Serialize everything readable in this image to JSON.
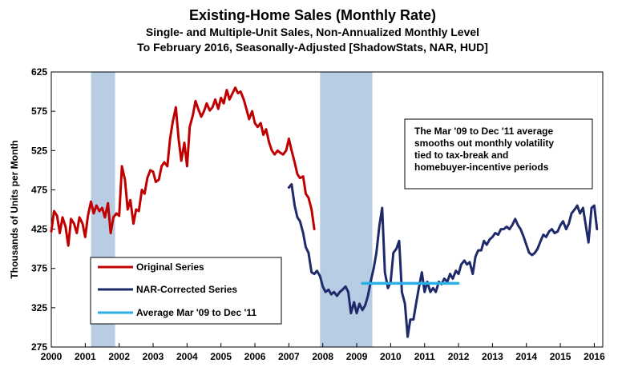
{
  "chart_data": {
    "type": "line",
    "title": "Existing-Home Sales (Monthly Rate)",
    "subtitle_1": "Single- and Multiple-Unit Sales, Non-Annualized Monthly Level",
    "subtitle_2": "To February 2016, Seasonally-Adjusted [ShadowStats, NAR, HUD]",
    "ylabel": "Thousands of Units per Month",
    "xlabel": "",
    "ylim": [
      275,
      625
    ],
    "xlim": [
      2000,
      2016.25
    ],
    "y_ticks": [
      "275",
      "325",
      "375",
      "425",
      "475",
      "525",
      "575",
      "625"
    ],
    "x_ticks": [
      "2000",
      "2001",
      "2002",
      "2003",
      "2004",
      "2005",
      "2006",
      "2007",
      "2008",
      "2009",
      "2010",
      "2011",
      "2012",
      "2013",
      "2014",
      "2015",
      "2016"
    ],
    "grid": false,
    "recessions": [
      {
        "start": 2001.17,
        "end": 2001.88
      },
      {
        "start": 2007.92,
        "end": 2009.46
      }
    ],
    "legend": {
      "position": "lower-left",
      "entries": [
        "Original Series",
        "NAR-Corrected Series",
        "Average Mar '09 to Dec '11"
      ]
    },
    "annotation": {
      "lines": [
        "The Mar '09 to Dec '11 average",
        "smooths out monthly volatility",
        "tied to tax-break and",
        "homebuyer-incentive  periods"
      ]
    },
    "series": [
      {
        "name": "Original Series",
        "color": "#c00000",
        "x": [
          2000.0,
          2000.08,
          2000.17,
          2000.25,
          2000.33,
          2000.42,
          2000.5,
          2000.58,
          2000.67,
          2000.75,
          2000.83,
          2000.92,
          2001.0,
          2001.08,
          2001.17,
          2001.25,
          2001.33,
          2001.42,
          2001.5,
          2001.58,
          2001.67,
          2001.75,
          2001.83,
          2001.92,
          2002.0,
          2002.08,
          2002.17,
          2002.25,
          2002.33,
          2002.42,
          2002.5,
          2002.58,
          2002.67,
          2002.75,
          2002.83,
          2002.92,
          2003.0,
          2003.08,
          2003.17,
          2003.25,
          2003.33,
          2003.42,
          2003.5,
          2003.58,
          2003.67,
          2003.75,
          2003.83,
          2003.92,
          2004.0,
          2004.08,
          2004.17,
          2004.25,
          2004.33,
          2004.42,
          2004.5,
          2004.58,
          2004.67,
          2004.75,
          2004.83,
          2004.92,
          2005.0,
          2005.08,
          2005.17,
          2005.25,
          2005.33,
          2005.42,
          2005.5,
          2005.58,
          2005.67,
          2005.75,
          2005.83,
          2005.92,
          2006.0,
          2006.08,
          2006.17,
          2006.25,
          2006.33,
          2006.42,
          2006.5,
          2006.58,
          2006.67,
          2006.75,
          2006.83,
          2006.92,
          2007.0,
          2007.08,
          2007.17,
          2007.25,
          2007.33,
          2007.42,
          2007.5,
          2007.58,
          2007.67,
          2007.75
        ],
        "values": [
          422,
          448,
          442,
          420,
          440,
          428,
          404,
          438,
          432,
          420,
          440,
          432,
          415,
          442,
          460,
          445,
          455,
          448,
          452,
          440,
          458,
          420,
          440,
          445,
          442,
          505,
          488,
          450,
          462,
          432,
          450,
          448,
          475,
          470,
          490,
          500,
          498,
          485,
          488,
          505,
          510,
          505,
          540,
          562,
          580,
          540,
          512,
          535,
          505,
          555,
          570,
          588,
          578,
          568,
          575,
          585,
          576,
          580,
          590,
          578,
          592,
          585,
          602,
          590,
          597,
          605,
          598,
          600,
          590,
          578,
          565,
          575,
          560,
          555,
          560,
          545,
          552,
          535,
          525,
          520,
          525,
          522,
          520,
          525,
          540,
          525,
          510,
          495,
          490,
          492,
          470,
          465,
          450,
          425
        ]
      },
      {
        "name": "NAR-Corrected Series",
        "color": "#1f2a6b",
        "x": [
          2007.0,
          2007.08,
          2007.17,
          2007.25,
          2007.33,
          2007.42,
          2007.5,
          2007.58,
          2007.67,
          2007.75,
          2007.83,
          2007.92,
          2008.0,
          2008.08,
          2008.17,
          2008.25,
          2008.33,
          2008.42,
          2008.5,
          2008.58,
          2008.67,
          2008.75,
          2008.83,
          2008.92,
          2009.0,
          2009.08,
          2009.17,
          2009.25,
          2009.33,
          2009.42,
          2009.5,
          2009.58,
          2009.67,
          2009.75,
          2009.83,
          2009.92,
          2010.0,
          2010.08,
          2010.17,
          2010.25,
          2010.33,
          2010.42,
          2010.5,
          2010.58,
          2010.67,
          2010.75,
          2010.83,
          2010.92,
          2011.0,
          2011.08,
          2011.17,
          2011.25,
          2011.33,
          2011.42,
          2011.5,
          2011.58,
          2011.67,
          2011.75,
          2011.83,
          2011.92,
          2012.0,
          2012.08,
          2012.17,
          2012.25,
          2012.33,
          2012.42,
          2012.5,
          2012.58,
          2012.67,
          2012.75,
          2012.83,
          2012.92,
          2013.0,
          2013.08,
          2013.17,
          2013.25,
          2013.33,
          2013.42,
          2013.5,
          2013.58,
          2013.67,
          2013.75,
          2013.83,
          2013.92,
          2014.0,
          2014.08,
          2014.17,
          2014.25,
          2014.33,
          2014.42,
          2014.5,
          2014.58,
          2014.67,
          2014.75,
          2014.83,
          2014.92,
          2015.0,
          2015.08,
          2015.17,
          2015.25,
          2015.33,
          2015.42,
          2015.5,
          2015.58,
          2015.67,
          2015.75,
          2015.83,
          2015.92,
          2016.0,
          2016.08
        ],
        "values": [
          478,
          482,
          455,
          440,
          435,
          420,
          402,
          395,
          370,
          368,
          372,
          365,
          352,
          345,
          348,
          342,
          345,
          340,
          345,
          348,
          352,
          345,
          318,
          332,
          318,
          330,
          322,
          328,
          340,
          360,
          375,
          395,
          430,
          452,
          370,
          350,
          358,
          395,
          400,
          410,
          345,
          330,
          288,
          310,
          310,
          330,
          350,
          370,
          345,
          358,
          345,
          350,
          345,
          358,
          355,
          362,
          358,
          368,
          362,
          372,
          368,
          380,
          385,
          380,
          383,
          368,
          390,
          398,
          398,
          410,
          405,
          412,
          415,
          420,
          418,
          425,
          425,
          428,
          425,
          430,
          438,
          430,
          425,
          415,
          405,
          395,
          392,
          395,
          400,
          410,
          418,
          415,
          422,
          425,
          420,
          422,
          430,
          435,
          425,
          432,
          445,
          450,
          455,
          445,
          452,
          430,
          408,
          452,
          455,
          425
        ]
      },
      {
        "name": "Average Mar '09 to Dec '11",
        "color": "#2ab0e6",
        "x": [
          2009.17,
          2011.99
        ],
        "values": [
          356,
          356
        ]
      }
    ]
  }
}
